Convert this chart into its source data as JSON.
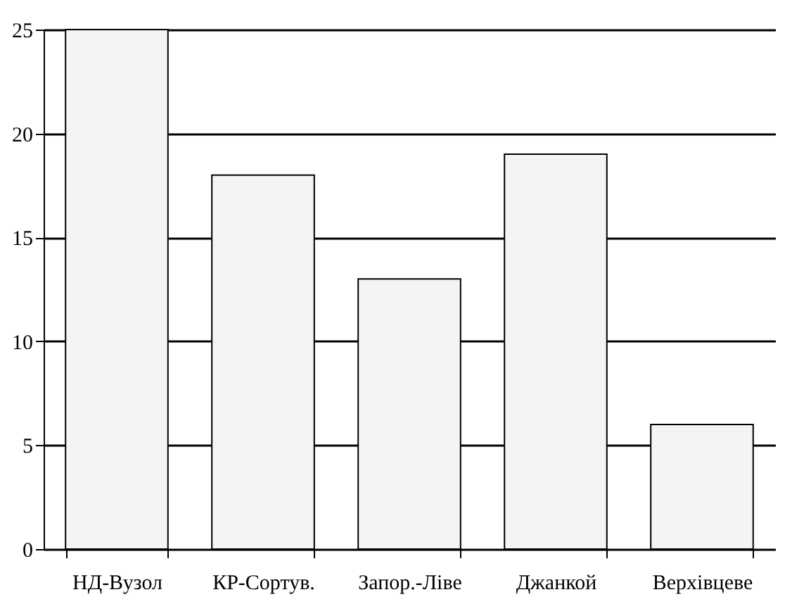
{
  "chart_data": {
    "type": "bar",
    "categories": [
      "НД-Вузол",
      "КР-Сортув.",
      "Запор.-Ліве",
      "Джанкой",
      "Верхівцеве"
    ],
    "values": [
      25,
      18,
      13,
      19,
      6
    ],
    "color": "#f4f4f4",
    "ylim": [
      0,
      25
    ],
    "yticks": [
      0,
      5,
      10,
      15,
      20,
      25
    ],
    "grid": "y"
  }
}
